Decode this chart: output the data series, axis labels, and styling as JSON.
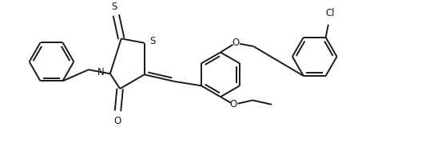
{
  "background_color": "#ffffff",
  "line_color": "#1a1a1a",
  "line_width": 1.4,
  "figsize": [
    5.52,
    1.94
  ],
  "dpi": 100,
  "xlim": [
    0,
    10.0
  ],
  "ylim": [
    0,
    3.5
  ]
}
